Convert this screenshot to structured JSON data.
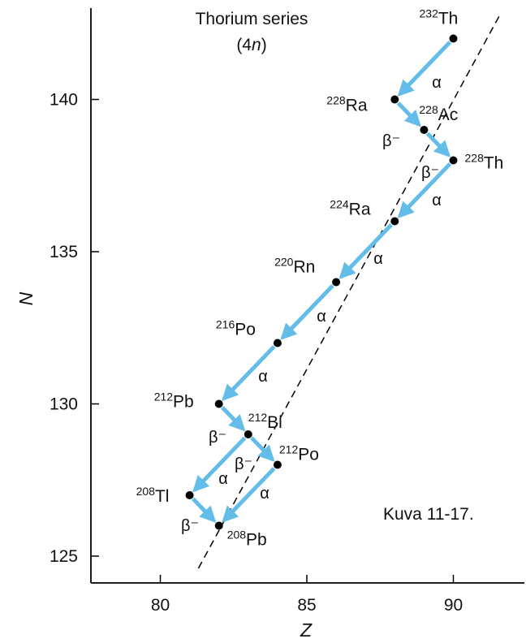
{
  "title": {
    "line1": "Thorium series",
    "line2_prefix": "(4",
    "line2_var": "n",
    "line2_suffix": ")"
  },
  "caption": "Kuva 11-17.",
  "axes": {
    "x": {
      "label": "Z",
      "range": [
        77.6,
        92.4
      ],
      "ticks": [
        80,
        85,
        90
      ],
      "tick_labels": [
        "80",
        "85",
        "90"
      ]
    },
    "y": {
      "label": "N",
      "range": [
        124.3,
        143.1
      ],
      "ticks": [
        125,
        130,
        135,
        140
      ],
      "tick_labels": [
        "125",
        "130",
        "135",
        "140"
      ]
    }
  },
  "colors": {
    "arrow": "#63bde8",
    "point": "#000000",
    "dashed_line": "#000000",
    "axis": "#000000"
  },
  "chart_data": {
    "type": "scatter",
    "title": "Thorium series (4n)",
    "xlabel": "Z",
    "ylabel": "N",
    "xlim": [
      77.6,
      92.4
    ],
    "ylim": [
      124.3,
      143.1
    ],
    "nuclides": [
      {
        "id": "th232",
        "sup": "232",
        "sym": "Th",
        "Z": 90,
        "N": 142
      },
      {
        "id": "ra228",
        "sup": "228",
        "sym": "Ra",
        "Z": 88,
        "N": 140
      },
      {
        "id": "ac228",
        "sup": "228",
        "sym": "Ac",
        "Z": 89,
        "N": 139
      },
      {
        "id": "th228",
        "sup": "228",
        "sym": "Th",
        "Z": 90,
        "N": 138
      },
      {
        "id": "ra224",
        "sup": "224",
        "sym": "Ra",
        "Z": 88,
        "N": 136
      },
      {
        "id": "rn220",
        "sup": "220",
        "sym": "Rn",
        "Z": 86,
        "N": 134
      },
      {
        "id": "po216",
        "sup": "216",
        "sym": "Po",
        "Z": 84,
        "N": 132
      },
      {
        "id": "pb212",
        "sup": "212",
        "sym": "Pb",
        "Z": 82,
        "N": 130
      },
      {
        "id": "bi212",
        "sup": "212",
        "sym": "Bi",
        "Z": 83,
        "N": 129
      },
      {
        "id": "po212",
        "sup": "212",
        "sym": "Po",
        "Z": 84,
        "N": 128
      },
      {
        "id": "tl208",
        "sup": "208",
        "sym": "Tl",
        "Z": 81,
        "N": 127
      },
      {
        "id": "pb208",
        "sup": "208",
        "sym": "Pb",
        "Z": 82,
        "N": 126
      }
    ],
    "decays": [
      {
        "from": "th232",
        "to": "ra228",
        "label": "α"
      },
      {
        "from": "ra228",
        "to": "ac228",
        "label": "β⁻"
      },
      {
        "from": "ac228",
        "to": "th228",
        "label": "β⁻"
      },
      {
        "from": "th228",
        "to": "ra224",
        "label": "α"
      },
      {
        "from": "ra224",
        "to": "rn220",
        "label": "α"
      },
      {
        "from": "rn220",
        "to": "po216",
        "label": "α"
      },
      {
        "from": "po216",
        "to": "pb212",
        "label": "α"
      },
      {
        "from": "pb212",
        "to": "bi212",
        "label": "β⁻"
      },
      {
        "from": "bi212",
        "to": "po212",
        "label": "β⁻"
      },
      {
        "from": "bi212",
        "to": "tl208",
        "label": "α"
      },
      {
        "from": "po212",
        "to": "pb208",
        "label": "α"
      },
      {
        "from": "tl208",
        "to": "pb208",
        "label": "β⁻"
      }
    ],
    "reference_line": {
      "from": [
        81.3,
        124.6
      ],
      "to": [
        91.6,
        142.8
      ],
      "style": "dashed"
    }
  }
}
